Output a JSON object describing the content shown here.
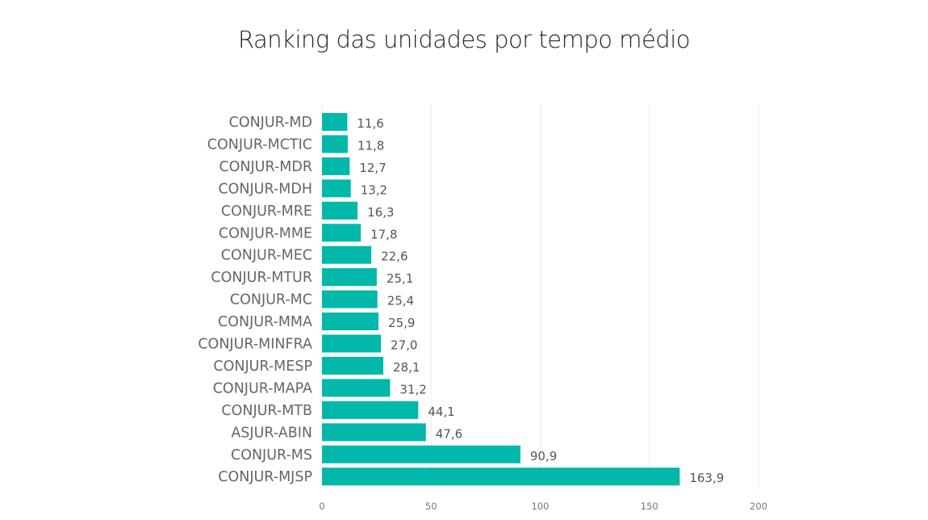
{
  "chart_data": {
    "type": "bar",
    "orientation": "horizontal",
    "title": "Ranking das unidades por tempo médio",
    "categories": [
      "CONJUR-MD",
      "CONJUR-MCTIC",
      "CONJUR-MDR",
      "CONJUR-MDH",
      "CONJUR-MRE",
      "CONJUR-MME",
      "CONJUR-MEC",
      "CONJUR-MTUR",
      "CONJUR-MC",
      "CONJUR-MMA",
      "CONJUR-MINFRA",
      "CONJUR-MESP",
      "CONJUR-MAPA",
      "CONJUR-MTB",
      "ASJUR-ABIN",
      "CONJUR-MS",
      "CONJUR-MJSP"
    ],
    "values": [
      11.6,
      11.8,
      12.7,
      13.2,
      16.3,
      17.8,
      22.6,
      25.1,
      25.4,
      25.9,
      27.0,
      28.1,
      31.2,
      44.1,
      47.6,
      90.9,
      163.9
    ],
    "value_labels": [
      "11,6",
      "11,8",
      "12,7",
      "13,2",
      "16,3",
      "17,8",
      "22,6",
      "25,1",
      "25,4",
      "25,9",
      "27,0",
      "28,1",
      "31,2",
      "44,1",
      "47,6",
      "90,9",
      "163,9"
    ],
    "xlim": [
      0,
      200
    ],
    "xticks": [
      "0",
      "50",
      "100",
      "150",
      "200"
    ],
    "xlabel": "",
    "ylabel": "",
    "grid": true,
    "bar_color": "#01B8AA"
  }
}
